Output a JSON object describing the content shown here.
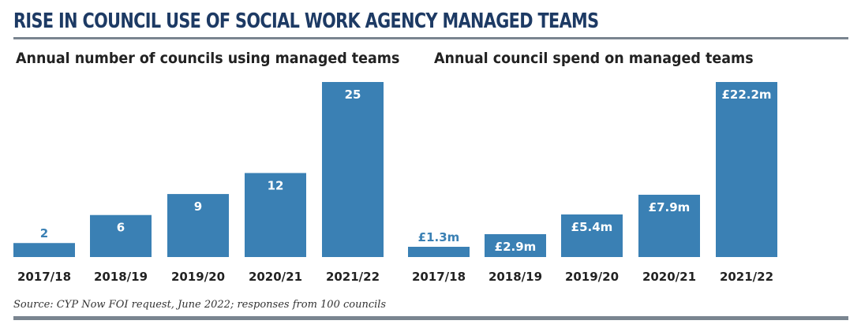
{
  "title": "RISE IN COUNCIL USE OF SOCIAL WORK AGENCY MANAGED TEAMS",
  "source": "Source: CYP Now FOI request, June 2022; responses from 100 councils",
  "colors": {
    "bar": "#3a80b4",
    "title": "#1d3a64",
    "rule": "#7a8590",
    "label_inside": "#ffffff",
    "label_outside": "#3a80b4"
  },
  "chart_data": [
    {
      "type": "bar",
      "title": "Annual number of councils using managed teams",
      "categories": [
        "2017/18",
        "2018/19",
        "2019/20",
        "2020/21",
        "2021/22"
      ],
      "values": [
        2,
        6,
        9,
        12,
        25
      ],
      "labels": [
        "2",
        "6",
        "9",
        "12",
        "25"
      ],
      "ylim": [
        0,
        25
      ],
      "grid": false,
      "xlabel": "",
      "ylabel": ""
    },
    {
      "type": "bar",
      "title": "Annual council spend on managed teams",
      "categories": [
        "2017/18",
        "2018/19",
        "2019/20",
        "2020/21",
        "2021/22"
      ],
      "values": [
        1.3,
        2.9,
        5.4,
        7.9,
        22.2
      ],
      "labels": [
        "£1.3m",
        "£2.9m",
        "£5.4m",
        "£7.9m",
        "£22.2m"
      ],
      "ylim": [
        0,
        22.2
      ],
      "grid": false,
      "xlabel": "",
      "ylabel": ""
    }
  ]
}
